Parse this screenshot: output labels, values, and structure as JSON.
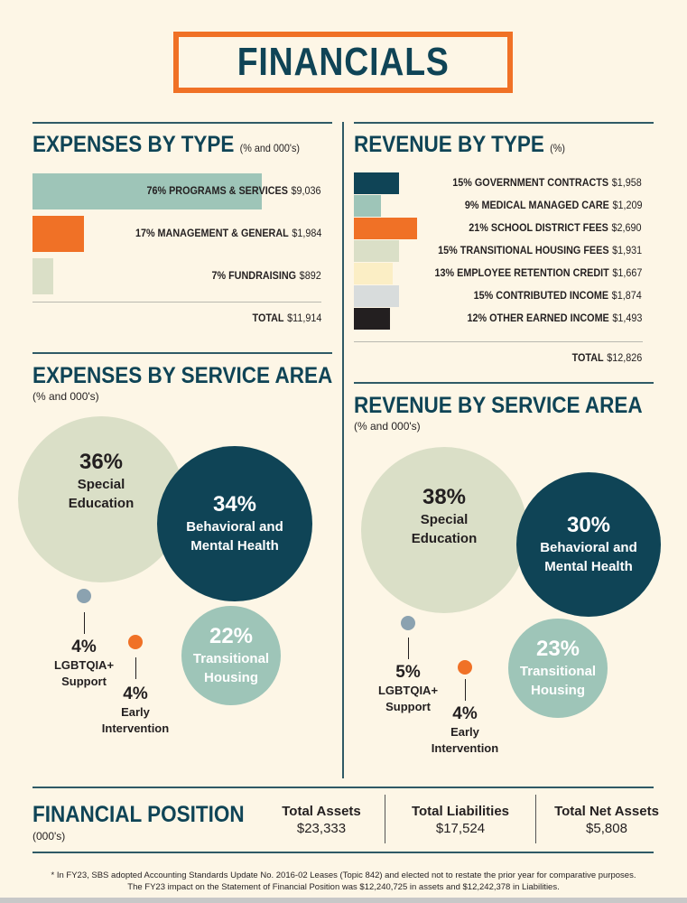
{
  "title": "FINANCIALS",
  "colors": {
    "dark_teal": "#0f4456",
    "sage": "#9ec5b8",
    "orange": "#f07126",
    "pale_green": "#dadfc7",
    "cream": "#fbeec5",
    "light_grey": "#d8dcdc",
    "black": "#231f20",
    "slate": "#8ba2b0"
  },
  "expenses_by_type": {
    "title": "EXPENSES BY TYPE",
    "subtitle": "(% and 000's)",
    "items": [
      {
        "label": "76% PROGRAMS & SERVICES",
        "amount": "$9,036",
        "pct": 76,
        "color": "#9ec5b8"
      },
      {
        "label": "17% MANAGEMENT & GENERAL",
        "amount": "$1,984",
        "pct": 17,
        "color": "#f07126"
      },
      {
        "label": "7% FUNDRAISING",
        "amount": "$892",
        "pct": 7,
        "color": "#dadfc7"
      }
    ],
    "total_label": "TOTAL",
    "total": "$11,914"
  },
  "revenue_by_type": {
    "title": "REVENUE BY TYPE",
    "subtitle": "(%)",
    "items": [
      {
        "label": "15% GOVERNMENT CONTRACTS",
        "amount": "$1,958",
        "pct": 15,
        "color": "#0f4456"
      },
      {
        "label": "9% MEDICAL MANAGED CARE",
        "amount": "$1,209",
        "pct": 9,
        "color": "#9ec5b8"
      },
      {
        "label": "21% SCHOOL DISTRICT FEES",
        "amount": "$2,690",
        "pct": 21,
        "color": "#f07126"
      },
      {
        "label": "15% TRANSITIONAL HOUSING FEES",
        "amount": "$1,931",
        "pct": 15,
        "color": "#dadfc7"
      },
      {
        "label": "13% EMPLOYEE RETENTION CREDIT",
        "amount": "$1,667",
        "pct": 13,
        "color": "#fbeec5"
      },
      {
        "label": "15% CONTRIBUTED INCOME",
        "amount": "$1,874",
        "pct": 15,
        "color": "#d8dcdc"
      },
      {
        "label": "12%  OTHER EARNED INCOME",
        "amount": "$1,493",
        "pct": 12,
        "color": "#231f20"
      }
    ],
    "total_label": "TOTAL",
    "total": "$12,826"
  },
  "expenses_by_service_area": {
    "title": "EXPENSES BY SERVICE AREA",
    "subtitle": "(% and 000's)",
    "items": [
      {
        "pct": "36%",
        "label": [
          "Special",
          "Education"
        ]
      },
      {
        "pct": "34%",
        "label": [
          "Behavioral and",
          "Mental Health"
        ]
      },
      {
        "pct": "22%",
        "label": [
          "Transitional",
          "Housing"
        ]
      },
      {
        "pct": "4%",
        "label": [
          "LGBTQIA+",
          "Support"
        ]
      },
      {
        "pct": "4%",
        "label": [
          "Early",
          "Intervention"
        ]
      }
    ]
  },
  "revenue_by_service_area": {
    "title": "REVENUE BY SERVICE AREA",
    "subtitle": "(% and 000's)",
    "items": [
      {
        "pct": "38%",
        "label": [
          "Special",
          "Education"
        ]
      },
      {
        "pct": "30%",
        "label": [
          "Behavioral and",
          "Mental Health"
        ]
      },
      {
        "pct": "23%",
        "label": [
          "Transitional",
          "Housing"
        ]
      },
      {
        "pct": "5%",
        "label": [
          "LGBTQIA+",
          "Support"
        ]
      },
      {
        "pct": "4%",
        "label": [
          "Early",
          "Intervention"
        ]
      }
    ]
  },
  "financial_position": {
    "title": "FINANCIAL POSITION",
    "subtitle": "(000's)",
    "items": [
      {
        "label": "Total Assets",
        "value": "$23,333"
      },
      {
        "label": "Total Liabilities",
        "value": "$17,524"
      },
      {
        "label": "Total Net Assets",
        "value": "$5,808"
      }
    ]
  },
  "footnote": [
    "* In FY23, SBS adopted Accounting Standards Update No. 2016-02 Leases (Topic 842) and elected not to restate the prior year for comparative purposes.",
    "The FY23 impact on the Statement of Financial Position was $12,240,725 in assets and $12,242,378 in Liabilities."
  ],
  "chart_data": [
    {
      "type": "bar",
      "title": "EXPENSES BY TYPE",
      "categories": [
        "PROGRAMS & SERVICES",
        "MANAGEMENT & GENERAL",
        "FUNDRAISING"
      ],
      "values": [
        76,
        17,
        7
      ],
      "amounts": [
        9036,
        1984,
        892
      ]
    },
    {
      "type": "bar",
      "title": "REVENUE BY TYPE",
      "categories": [
        "GOVERNMENT CONTRACTS",
        "MEDICAL MANAGED CARE",
        "SCHOOL DISTRICT FEES",
        "TRANSITIONAL HOUSING FEES",
        "EMPLOYEE RETENTION CREDIT",
        "CONTRIBUTED INCOME",
        "OTHER EARNED INCOME"
      ],
      "values": [
        15,
        9,
        21,
        15,
        13,
        15,
        12
      ],
      "amounts": [
        1958,
        1209,
        2690,
        1931,
        1667,
        1874,
        1493
      ]
    },
    {
      "type": "bubble",
      "title": "EXPENSES BY SERVICE AREA",
      "categories": [
        "Special Education",
        "Behavioral and Mental Health",
        "Transitional Housing",
        "LGBTQIA+ Support",
        "Early Intervention"
      ],
      "values": [
        36,
        34,
        22,
        4,
        4
      ]
    },
    {
      "type": "bubble",
      "title": "REVENUE BY SERVICE AREA",
      "categories": [
        "Special Education",
        "Behavioral and Mental Health",
        "Transitional Housing",
        "LGBTQIA+ Support",
        "Early Intervention"
      ],
      "values": [
        38,
        30,
        23,
        5,
        4
      ]
    }
  ]
}
